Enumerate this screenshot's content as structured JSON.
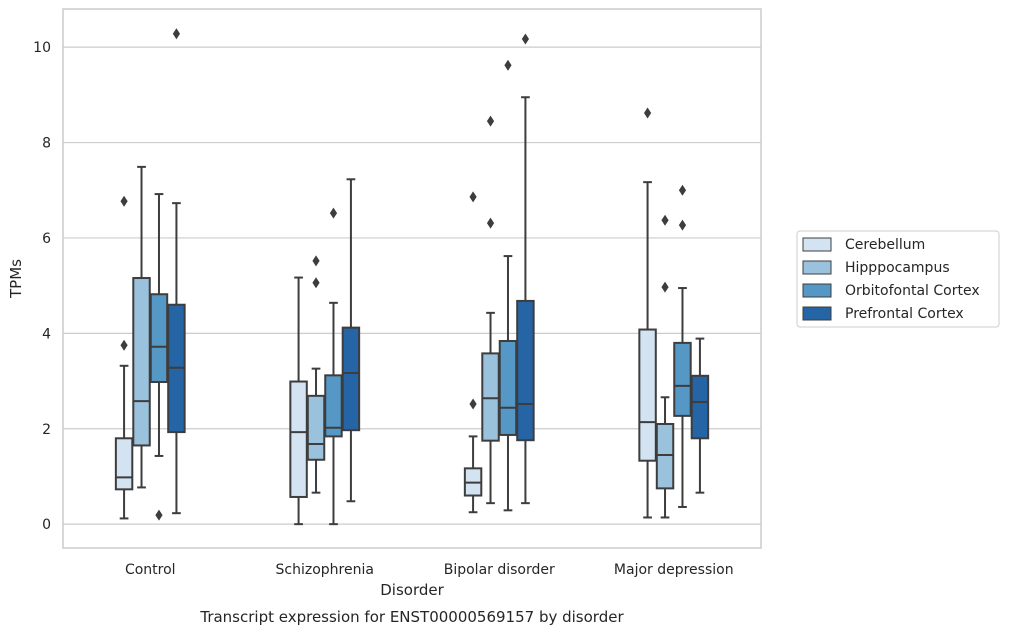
{
  "chart_data": {
    "type": "boxplot",
    "caption": "Transcript expression for ENST00000569157 by disorder",
    "xlabel": "Disorder",
    "ylabel": "TPMs",
    "ylim": [
      -0.5,
      10.8
    ],
    "yticks": [
      0,
      2,
      4,
      6,
      8,
      10
    ],
    "grid": "horizontal",
    "legend_position": "right",
    "categories": [
      "Control",
      "Schizophrenia",
      "Bipolar disorder",
      "Major depression"
    ],
    "series": [
      {
        "name": "Cerebellum",
        "color": "#d3e3f2",
        "boxes": [
          {
            "whislo": 0.12,
            "q1": 0.73,
            "med": 0.98,
            "q3": 1.8,
            "whishi": 3.32,
            "fliers": [
              3.75,
              6.77
            ]
          },
          {
            "whislo": 0.0,
            "q1": 0.57,
            "med": 1.93,
            "q3": 2.99,
            "whishi": 5.17,
            "fliers": []
          },
          {
            "whislo": 0.25,
            "q1": 0.6,
            "med": 0.87,
            "q3": 1.17,
            "whishi": 1.84,
            "fliers": [
              2.52,
              6.86
            ]
          },
          {
            "whislo": 0.14,
            "q1": 1.33,
            "med": 2.14,
            "q3": 4.08,
            "whishi": 7.17,
            "fliers": [
              8.62
            ]
          }
        ]
      },
      {
        "name": "Hipppocampus",
        "color": "#9ac2dd",
        "boxes": [
          {
            "whislo": 0.77,
            "q1": 1.65,
            "med": 2.58,
            "q3": 5.16,
            "whishi": 7.49,
            "fliers": []
          },
          {
            "whislo": 0.66,
            "q1": 1.35,
            "med": 1.68,
            "q3": 2.69,
            "whishi": 3.26,
            "fliers": [
              5.06,
              5.52
            ]
          },
          {
            "whislo": 0.44,
            "q1": 1.75,
            "med": 2.64,
            "q3": 3.58,
            "whishi": 4.43,
            "fliers": [
              6.31,
              8.45
            ]
          },
          {
            "whislo": 0.14,
            "q1": 0.75,
            "med": 1.45,
            "q3": 2.1,
            "whishi": 2.66,
            "fliers": [
              4.97,
              6.37
            ]
          }
        ]
      },
      {
        "name": "Orbitofontal Cortex",
        "color": "#5598c6",
        "boxes": [
          {
            "whislo": 1.43,
            "q1": 2.98,
            "med": 3.72,
            "q3": 4.82,
            "whishi": 6.92,
            "fliers": [
              0.19
            ]
          },
          {
            "whislo": 0.0,
            "q1": 1.84,
            "med": 2.02,
            "q3": 3.12,
            "whishi": 4.64,
            "fliers": [
              6.52
            ]
          },
          {
            "whislo": 0.29,
            "q1": 1.87,
            "med": 2.44,
            "q3": 3.84,
            "whishi": 5.62,
            "fliers": [
              9.62
            ]
          },
          {
            "whislo": 0.36,
            "q1": 2.27,
            "med": 2.9,
            "q3": 3.8,
            "whishi": 4.95,
            "fliers": [
              6.27,
              7.0
            ]
          }
        ]
      },
      {
        "name": "Prefrontal Cortex",
        "color": "#2565a5",
        "boxes": [
          {
            "whislo": 0.23,
            "q1": 1.93,
            "med": 3.28,
            "q3": 4.6,
            "whishi": 6.73,
            "fliers": [
              10.28
            ]
          },
          {
            "whislo": 0.48,
            "q1": 1.97,
            "med": 3.17,
            "q3": 4.12,
            "whishi": 7.23,
            "fliers": []
          },
          {
            "whislo": 0.44,
            "q1": 1.76,
            "med": 2.52,
            "q3": 4.68,
            "whishi": 8.95,
            "fliers": [
              10.17
            ]
          },
          {
            "whislo": 0.66,
            "q1": 1.8,
            "med": 2.56,
            "q3": 3.11,
            "whishi": 3.89,
            "fliers": []
          }
        ]
      }
    ]
  }
}
